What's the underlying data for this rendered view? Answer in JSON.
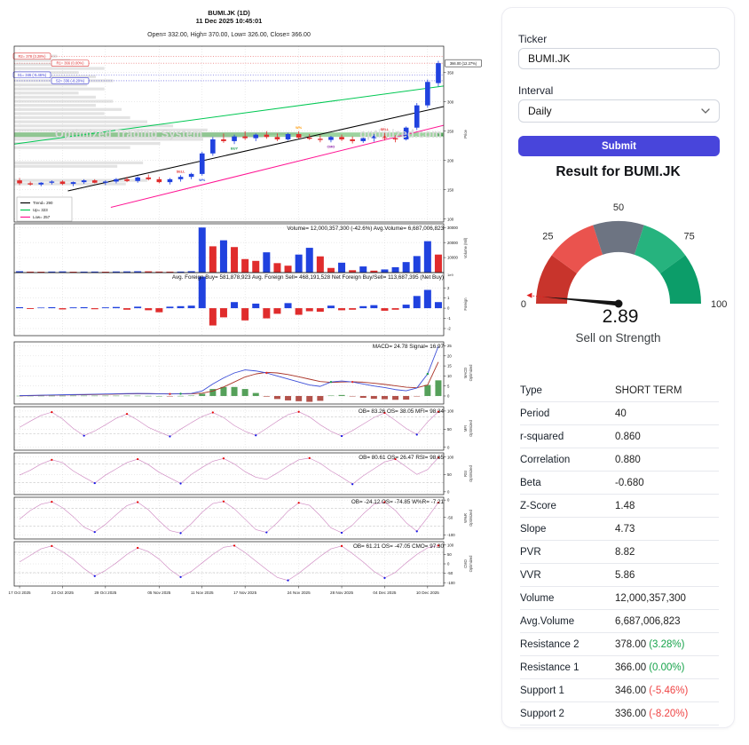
{
  "form": {
    "ticker_label": "Ticker",
    "ticker_value": "BUMI.JK",
    "interval_label": "Interval",
    "interval_value": "Daily",
    "submit_label": "Submit",
    "accent_color": "#4845db"
  },
  "result": {
    "heading": "Result for BUMI.JK"
  },
  "gauge": {
    "value": "2.89",
    "caption": "Sell on Strength",
    "ticks": [
      "0",
      "25",
      "50",
      "75",
      "100"
    ],
    "segments": [
      {
        "from": 0,
        "to": 20,
        "color": "#c8342c"
      },
      {
        "from": 20,
        "to": 40,
        "color": "#ea534e"
      },
      {
        "from": 40,
        "to": 60,
        "color": "#6d7482"
      },
      {
        "from": 60,
        "to": 80,
        "color": "#26b37e"
      },
      {
        "from": 80,
        "to": 100,
        "color": "#0c9d69"
      }
    ],
    "needle_color": "#141414",
    "threshold_color": "#e02020"
  },
  "table": {
    "rows": [
      {
        "label": "Type",
        "value": "SHORT TERM"
      },
      {
        "label": "Period",
        "value": "40"
      },
      {
        "label": "r-squared",
        "value": "0.860"
      },
      {
        "label": "Correlation",
        "value": "0.880"
      },
      {
        "label": "Beta",
        "value": "-0.680"
      },
      {
        "label": "Z-Score",
        "value": "1.48"
      },
      {
        "label": "Slope",
        "value": "4.73"
      },
      {
        "label": "PVR",
        "value": "8.82"
      },
      {
        "label": "VVR",
        "value": "5.86"
      },
      {
        "label": "Volume",
        "value": "12,000,357,300"
      },
      {
        "label": "Avg.Volume",
        "value": "6,687,006,823"
      },
      {
        "label": "Resistance 2",
        "value": "378.00",
        "pct": "(3.28%)",
        "pct_color": "#16a34a"
      },
      {
        "label": "Resistance 1",
        "value": "366.00",
        "pct": "(0.00%)",
        "pct_color": "#16a34a"
      },
      {
        "label": "Support 1",
        "value": "346.00",
        "pct": "(-5.46%)",
        "pct_color": "#ef4444"
      },
      {
        "label": "Support 2",
        "value": "336.00",
        "pct": "(-8.20%)",
        "pct_color": "#ef4444"
      }
    ]
  },
  "chart_data": {
    "type": "candlestick-multi-panel",
    "title": "BUMI.JK (1D)",
    "datetime": "11 Dec 2025 10:45:01",
    "ohlc_line": "Open= 332.00, High= 370.00, Low= 326.00, Close= 366.00",
    "watermark_left": "Optimized Trading System",
    "watermark_right": "optimized.com",
    "dates": [
      "17 Oct 2025",
      "23 Oct 2025",
      "29 Oct 2025",
      "05 Nov 2025",
      "11 Nov 2025",
      "17 Nov 2025",
      "24 Nov 2025",
      "28 Nov 2025",
      "04 Dec 2025",
      "10 Dec 2025"
    ],
    "label_days": [
      0,
      4,
      8,
      13,
      17,
      21,
      26,
      30,
      34,
      38
    ],
    "colors": {
      "up": "#2042df",
      "down": "#e02c2c",
      "macd_line": "#3c4ed8",
      "signal_line": "#a93226",
      "hist_pos": "#55a05a",
      "hist_neg": "#b2524b",
      "osc_line": "#cf8ac2",
      "dot_high": "#e60000",
      "dot_low": "#1414e6",
      "band": "#4caf50"
    },
    "candles": [
      [
        166,
        170,
        158,
        161
      ],
      [
        161,
        164,
        157,
        159
      ],
      [
        159,
        163,
        156,
        162
      ],
      [
        162,
        166,
        159,
        164
      ],
      [
        164,
        166,
        158,
        160
      ],
      [
        160,
        164,
        156,
        163
      ],
      [
        163,
        168,
        160,
        166
      ],
      [
        166,
        168,
        161,
        162
      ],
      [
        162,
        166,
        158,
        164
      ],
      [
        164,
        170,
        161,
        168
      ],
      [
        168,
        172,
        163,
        165
      ],
      [
        165,
        173,
        162,
        171
      ],
      [
        171,
        176,
        166,
        168
      ],
      [
        168,
        172,
        161,
        163
      ],
      [
        163,
        170,
        159,
        168
      ],
      [
        168,
        175,
        164,
        172
      ],
      [
        172,
        179,
        168,
        177
      ],
      [
        177,
        215,
        174,
        212
      ],
      [
        212,
        240,
        208,
        236
      ],
      [
        236,
        246,
        230,
        233
      ],
      [
        233,
        244,
        228,
        241
      ],
      [
        241,
        250,
        235,
        238
      ],
      [
        238,
        246,
        233,
        244
      ],
      [
        244,
        250,
        237,
        240
      ],
      [
        240,
        246,
        233,
        236
      ],
      [
        236,
        247,
        234,
        245
      ],
      [
        245,
        250,
        237,
        239
      ],
      [
        239,
        245,
        235,
        237
      ],
      [
        237,
        243,
        231,
        235
      ],
      [
        235,
        242,
        231,
        240
      ],
      [
        240,
        244,
        233,
        236
      ],
      [
        236,
        241,
        229,
        233
      ],
      [
        233,
        240,
        230,
        238
      ],
      [
        238,
        245,
        232,
        242
      ],
      [
        242,
        247,
        234,
        238
      ],
      [
        238,
        243,
        231,
        236
      ],
      [
        236,
        258,
        234,
        256
      ],
      [
        256,
        298,
        252,
        294
      ],
      [
        294,
        338,
        290,
        334
      ],
      [
        332,
        370,
        326,
        366
      ]
    ],
    "price_panel": {
      "ylim": [
        95,
        395
      ],
      "ticks": [
        100,
        150,
        200,
        250,
        300,
        350
      ],
      "ylabel": "Price",
      "last_tag": "366.00 (12.27%)",
      "band": {
        "price": 244,
        "label": "244"
      },
      "levels": [
        {
          "price": 378,
          "label": "R2= 378 (3.28%)",
          "color": "#e03030",
          "box_x": 1
        },
        {
          "price": 366,
          "label": "R1= 366 (0.00%)",
          "color": "#e03030",
          "box_x": 44
        },
        {
          "price": 346,
          "label": "S1= 346 (-5.46%)",
          "color": "#3b3bd8",
          "box_x": 1
        },
        {
          "price": 336,
          "label": "S2= 336 (-8.20%)",
          "color": "#3b3bd8",
          "box_x": 44
        }
      ],
      "lines": [
        {
          "name": "trend",
          "color": "#000000",
          "x": [
            5,
            40
          ],
          "y": [
            148,
            292
          ]
        },
        {
          "name": "up",
          "color": "#00c853",
          "x": [
            0,
            40
          ],
          "y": [
            228,
            327
          ]
        },
        {
          "name": "low",
          "color": "#ff1493",
          "x": [
            9,
            40
          ],
          "y": [
            120,
            260
          ]
        }
      ],
      "legend": [
        {
          "label": "Trend= 290",
          "color": "#000000"
        },
        {
          "label": "Up= 323",
          "color": "#00c853"
        },
        {
          "label": "Low= 257",
          "color": "#ff1493"
        }
      ],
      "profile": [
        [
          378,
          0.1
        ],
        [
          371,
          0.13
        ],
        [
          364,
          0.17
        ],
        [
          357,
          0.21
        ],
        [
          350,
          0.15
        ],
        [
          343,
          0.19
        ],
        [
          336,
          0.23
        ],
        [
          329,
          0.17
        ],
        [
          322,
          0.21
        ],
        [
          315,
          0.15
        ],
        [
          308,
          0.19
        ],
        [
          301,
          0.23
        ],
        [
          294,
          0.19
        ],
        [
          287,
          0.25
        ],
        [
          280,
          0.21
        ],
        [
          273,
          0.27
        ],
        [
          266,
          0.31
        ],
        [
          259,
          0.37
        ],
        [
          252,
          0.45
        ],
        [
          246,
          0.66
        ],
        [
          241,
          0.58
        ],
        [
          236,
          0.44
        ],
        [
          229,
          0.34
        ],
        [
          222,
          0.27
        ],
        [
          196,
          0.3
        ],
        [
          190,
          0.24
        ],
        [
          166,
          0.31
        ],
        [
          160,
          0.26
        ]
      ],
      "markers": [
        {
          "d": 15,
          "t": "SELL",
          "c": "#e03030",
          "pos": "a"
        },
        {
          "d": 17,
          "t": "W%",
          "c": "#2042df",
          "pos": "b"
        },
        {
          "d": 20,
          "t": "BUY",
          "c": "#1a9850",
          "pos": "b"
        },
        {
          "d": 26,
          "t": "W%",
          "c": "#ff9800",
          "pos": "a"
        },
        {
          "d": 29,
          "t": "CMO",
          "c": "#8e24aa",
          "pos": "b"
        },
        {
          "d": 34,
          "t": "SELL",
          "c": "#e03030",
          "pos": "a"
        }
      ]
    },
    "volume_panel": {
      "text": "Volume= 12,000,357,300 (-42.6%)  Avg.Volume= 6,687,006,823",
      "ylim": [
        0,
        32500
      ],
      "ticks": [
        10000,
        20000,
        30000
      ],
      "ylabel": "Volume (Mil)",
      "values": [
        900,
        650,
        600,
        700,
        800,
        600,
        650,
        700,
        600,
        750,
        800,
        900,
        850,
        700,
        650,
        700,
        950,
        30000,
        17500,
        21500,
        17000,
        9000,
        7800,
        13500,
        6300,
        4600,
        12000,
        16500,
        10800,
        3100,
        6600,
        1600,
        4100,
        1300,
        2100,
        3600,
        7000,
        11000,
        20900,
        12000
      ]
    },
    "foreign_panel": {
      "text": "Avg. Foreign Buy= 581,878,923  Avg. Foreign Sell= 468,191,528  Net Foreign Buy/Sell= 113,687,395 (Net Buy)",
      "ylim": [
        -2.7,
        3.5
      ],
      "ticks": [
        -2,
        -1,
        0,
        1,
        2
      ],
      "ylabel": "Foreign",
      "offset_label": "1e9",
      "values": [
        0.1,
        -0.08,
        0.06,
        0.1,
        -0.12,
        0.08,
        0.1,
        -0.1,
        0.08,
        0.12,
        -0.15,
        0.15,
        -0.2,
        -0.4,
        0.15,
        0.2,
        0.25,
        3.1,
        -1.7,
        -0.9,
        0.6,
        -1.2,
        0.45,
        -1.0,
        -0.55,
        0.5,
        -0.65,
        -0.3,
        -0.35,
        0.25,
        -0.2,
        -0.15,
        0.2,
        0.3,
        -0.25,
        -0.15,
        0.35,
        1.2,
        1.8,
        0.6
      ]
    },
    "macd_panel": {
      "text": "MACD= 24.78  Signal= 16.97",
      "ylim": [
        -4,
        27
      ],
      "ticks": [
        0,
        5,
        10,
        15,
        20,
        25
      ],
      "ylabel": "MACD Optimized",
      "macd": [
        0.2,
        0.3,
        0.4,
        0.5,
        0.6,
        0.7,
        0.8,
        0.9,
        1.0,
        1.1,
        1.2,
        1.3,
        1.2,
        1.1,
        1.0,
        1.1,
        1.3,
        2.5,
        6,
        9,
        11.5,
        13,
        12.5,
        11.5,
        10,
        8.5,
        7,
        5.5,
        4.8,
        7,
        7.5,
        7,
        6,
        5,
        4.2,
        3.2,
        2.6,
        4,
        11,
        24.78
      ],
      "signal": [
        0.1,
        0.2,
        0.3,
        0.4,
        0.5,
        0.55,
        0.65,
        0.75,
        0.85,
        0.95,
        1.05,
        1.15,
        1.15,
        1.1,
        1.05,
        1.05,
        1.1,
        1.4,
        2.5,
        4.5,
        7,
        9.5,
        11,
        11.8,
        11.5,
        10.7,
        9.6,
        8.4,
        7.2,
        6.8,
        7,
        7.1,
        6.9,
        6.4,
        5.8,
        5.1,
        4.4,
        4.1,
        5.5,
        16.97
      ]
    },
    "oscillators": [
      {
        "key": "mfi",
        "text": "OB= 83.26  OS= 38.05  MFI= 98.34",
        "ob": 83.26,
        "os": 38.05,
        "ylim": [
          -8,
          112
        ],
        "ticks": [
          0,
          50,
          100
        ],
        "ylabel": "MFI Optimized",
        "values": [
          55,
          72,
          88,
          97,
          78,
          52,
          32,
          45,
          62,
          80,
          92,
          75,
          55,
          42,
          30,
          50,
          68,
          85,
          96,
          82,
          60,
          44,
          33,
          52,
          72,
          90,
          98,
          84,
          62,
          44,
          31,
          46,
          64,
          82,
          95,
          74,
          52,
          35,
          70,
          98.34
        ]
      },
      {
        "key": "rsi",
        "text": "OB= 80.61  OS= 26.47  RSI= 98.65",
        "ob": 80.61,
        "os": 26.47,
        "ylim": [
          -8,
          112
        ],
        "ticks": [
          0,
          50,
          100
        ],
        "ylabel": "RSI Optimized",
        "values": [
          48,
          62,
          80,
          92,
          84,
          60,
          42,
          25,
          48,
          66,
          84,
          94,
          78,
          56,
          40,
          24,
          50,
          70,
          88,
          96,
          80,
          58,
          42,
          36,
          54,
          74,
          92,
          97,
          82,
          60,
          42,
          22,
          46,
          66,
          86,
          94,
          72,
          50,
          64,
          98.65
        ]
      },
      {
        "key": "wpr",
        "text": "OB= -24.12  OS= -74.85  W%R= -7.21",
        "ob": -24.12,
        "os": -74.85,
        "ylim": [
          -112,
          8
        ],
        "ticks": [
          -100,
          -50,
          0
        ],
        "ylabel": "W%R Optimized",
        "values": [
          -55,
          -30,
          -12,
          -5,
          -22,
          -48,
          -78,
          -92,
          -70,
          -42,
          -16,
          -6,
          -28,
          -60,
          -88,
          -95,
          -68,
          -35,
          -10,
          -4,
          -25,
          -55,
          -85,
          -93,
          -65,
          -32,
          -8,
          -15,
          -45,
          -80,
          -94,
          -72,
          -40,
          -12,
          -6,
          -30,
          -65,
          -90,
          -50,
          -7.21
        ]
      },
      {
        "key": "cmo",
        "text": "OB= 61.21  OS= -47.05  CMO= 97.30",
        "ob": 61.21,
        "os": -47.05,
        "ylim": [
          -118,
          118
        ],
        "ticks": [
          -100,
          -50,
          0,
          50,
          100
        ],
        "ylabel": "CMO Optimized",
        "values": [
          10,
          45,
          80,
          95,
          65,
          25,
          -25,
          -65,
          -35,
          5,
          50,
          85,
          65,
          25,
          -30,
          -70,
          -40,
          5,
          50,
          88,
          97,
          60,
          15,
          -30,
          -72,
          -88,
          -50,
          -5,
          40,
          80,
          95,
          55,
          10,
          -40,
          -75,
          -45,
          5,
          50,
          85,
          97.3
        ]
      }
    ]
  }
}
